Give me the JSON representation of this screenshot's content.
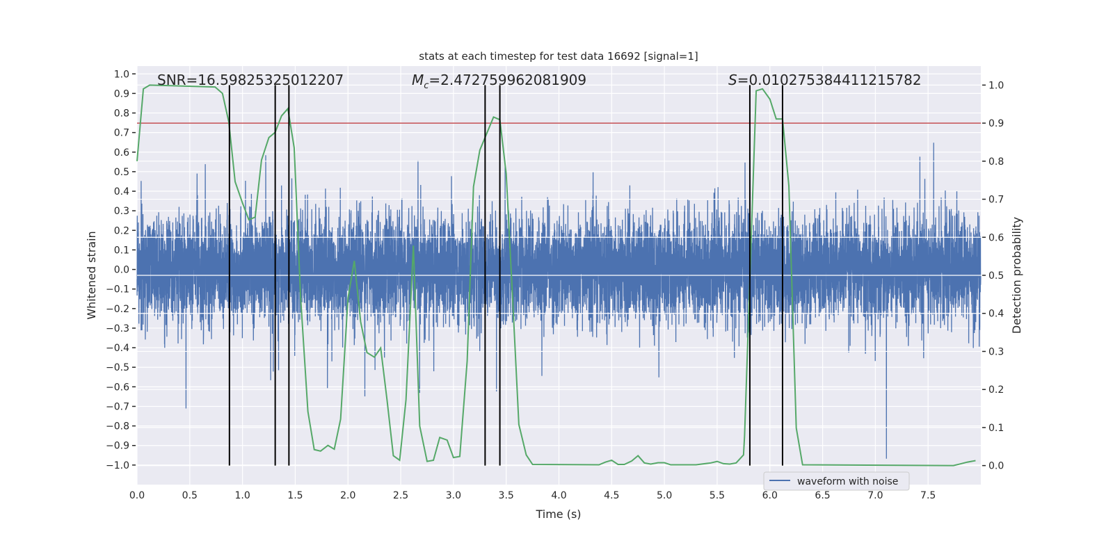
{
  "chart_data": {
    "type": "line",
    "title": "stats at each timestep for test data 16692 [signal=1]",
    "xlabel": "Time (s)",
    "ylabel": "Whitened strain",
    "ylabel_right": "Detection probability",
    "xlim": [
      0,
      8
    ],
    "ylim": [
      -1.1,
      1.04
    ],
    "ylim_right": [
      -0.05,
      1.05
    ],
    "grid": true,
    "background": "#eaeaf2",
    "x_ticks": [
      "0.0",
      "0.5",
      "1.0",
      "1.5",
      "2.0",
      "2.5",
      "3.0",
      "3.5",
      "4.0",
      "4.5",
      "5.0",
      "5.5",
      "6.0",
      "6.5",
      "7.0",
      "7.5"
    ],
    "y_ticks": [
      "1.0",
      "0.9",
      "0.8",
      "0.7",
      "0.6",
      "0.5",
      "0.4",
      "0.3",
      "0.2",
      "0.1",
      "0.0",
      "−0.1",
      "−0.2",
      "−0.3",
      "−0.4",
      "−0.5",
      "−0.6",
      "−0.7",
      "−0.8",
      "−0.9",
      "−1.0"
    ],
    "y_ticks_right": [
      "1.0",
      "0.9",
      "0.8",
      "0.7",
      "0.6",
      "0.5",
      "0.4",
      "0.3",
      "0.2",
      "0.1",
      "0.0"
    ],
    "annotations": {
      "snr": "SNR=16.59825325012207",
      "mc_symbol": "M",
      "mc_sub": "c",
      "mc_value": "=2.472759962081909",
      "s_symbol": "S",
      "s_value": "=0.010275384411215782"
    },
    "legend": {
      "position": "lower-right",
      "entries": [
        "waveform with noise"
      ]
    },
    "series": [
      {
        "name": "waveform with noise",
        "axis": "left",
        "color": "#4c72b0",
        "description_range": [
          -1.0,
          0.95
        ]
      },
      {
        "axis": "right",
        "color": "#55a868",
        "x": [
          0.0,
          0.06,
          0.12,
          0.74,
          0.81,
          0.87,
          0.93,
          1.0,
          1.06,
          1.12,
          1.18,
          1.25,
          1.31,
          1.37,
          1.43,
          1.49,
          1.55,
          1.62,
          1.68,
          1.74,
          1.81,
          1.87,
          1.93,
          2.0,
          2.06,
          2.12,
          2.18,
          2.25,
          2.31,
          2.37,
          2.43,
          2.49,
          2.55,
          2.62,
          2.68,
          2.75,
          2.81,
          2.87,
          2.94,
          3.0,
          3.06,
          3.13,
          3.19,
          3.25,
          3.38,
          3.44,
          3.5,
          3.56,
          3.62,
          3.69,
          3.75,
          4.38,
          4.44,
          4.5,
          4.56,
          4.62,
          4.69,
          4.75,
          4.81,
          4.87,
          4.94,
          5.0,
          5.06,
          5.3,
          5.44,
          5.5,
          5.56,
          5.62,
          5.68,
          5.75,
          5.76,
          5.87,
          5.93,
          6.0,
          6.06,
          6.12,
          6.18,
          6.25,
          6.31,
          7.74,
          7.8,
          7.87,
          7.95
        ],
        "y": [
          0.8,
          0.99,
          1.0,
          0.995,
          0.978,
          0.903,
          0.746,
          0.69,
          0.646,
          0.653,
          0.803,
          0.862,
          0.876,
          0.919,
          0.938,
          0.835,
          0.446,
          0.142,
          0.042,
          0.038,
          0.053,
          0.043,
          0.122,
          0.44,
          0.538,
          0.378,
          0.297,
          0.285,
          0.309,
          0.173,
          0.026,
          0.014,
          0.173,
          0.578,
          0.104,
          0.011,
          0.014,
          0.074,
          0.067,
          0.021,
          0.024,
          0.275,
          0.733,
          0.829,
          0.916,
          0.909,
          0.767,
          0.444,
          0.108,
          0.028,
          0.003,
          0.002,
          0.009,
          0.014,
          0.003,
          0.003,
          0.012,
          0.026,
          0.007,
          0.004,
          0.0075,
          0.0075,
          0.002,
          0.002,
          0.007,
          0.011,
          0.005,
          0.004,
          0.007,
          0.028,
          0.078,
          0.985,
          0.99,
          0.963,
          0.911,
          0.911,
          0.735,
          0.099,
          0.002,
          0.0,
          0.004,
          0.009,
          0.013
        ]
      }
    ],
    "threshold": {
      "axis": "right",
      "value": 0.9,
      "color": "#c44e52"
    },
    "vertical_lines": {
      "color": "#000000",
      "x": [
        0.876,
        1.31,
        1.44,
        3.3,
        3.44,
        5.81,
        6.12
      ],
      "y_range_right": [
        0,
        1
      ]
    }
  }
}
